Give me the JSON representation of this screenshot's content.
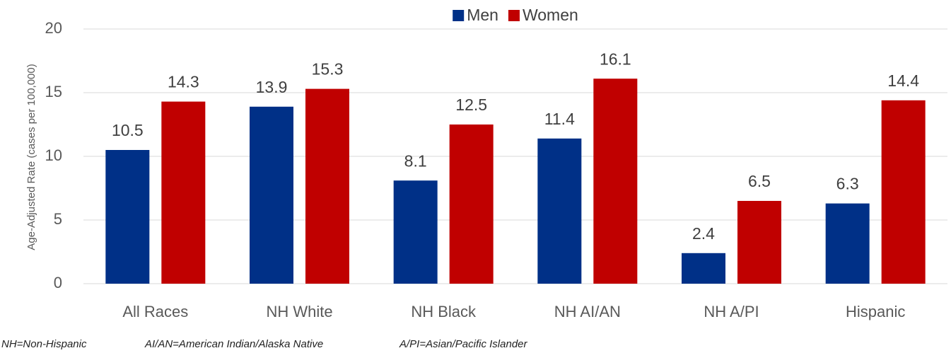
{
  "chart_data": {
    "type": "bar",
    "y_label": "Age-Adjusted Rate (cases per 100,000)",
    "categories": [
      "All Races",
      "NH White",
      "NH Black",
      "NH AI/AN",
      "NH A/PI",
      "Hispanic"
    ],
    "series": [
      {
        "name": "Men",
        "color": "#003087",
        "values": [
          10.5,
          13.9,
          8.1,
          11.4,
          2.4,
          6.3
        ]
      },
      {
        "name": "Women",
        "color": "#c00000",
        "values": [
          14.3,
          15.3,
          12.5,
          16.1,
          6.5,
          14.4
        ]
      }
    ],
    "ylim": [
      0,
      20
    ],
    "yticks": [
      0,
      5,
      10,
      15,
      20
    ],
    "grid": true,
    "legend": "top",
    "notes": [
      "NH=Non-Hispanic",
      "AI/AN=American Indian/Alaska Native",
      "A/PI=Asian/Pacific Islander"
    ]
  }
}
